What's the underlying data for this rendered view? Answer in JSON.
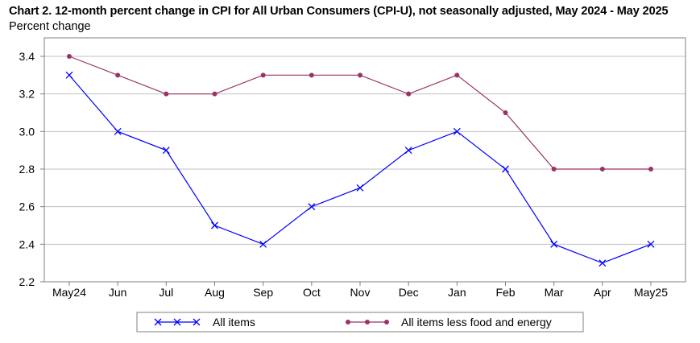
{
  "chart_data": {
    "type": "line",
    "title": "Chart 2. 12-month percent change in CPI for All Urban Consumers (CPI-U), not seasonally adjusted, May 2024 - May 2025",
    "ylabel": "Percent change",
    "xlabel": "",
    "categories": [
      "May24",
      "Jun",
      "Jul",
      "Aug",
      "Sep",
      "Oct",
      "Nov",
      "Dec",
      "Jan",
      "Feb",
      "Mar",
      "Apr",
      "May25"
    ],
    "ylim": [
      2.2,
      3.4
    ],
    "yticks": [
      "2.2",
      "2.4",
      "2.6",
      "2.8",
      "3.0",
      "3.2",
      "3.4"
    ],
    "grid": true,
    "legend_position": "bottom",
    "series": [
      {
        "name": "All items",
        "color": "#0000ff",
        "marker": "x",
        "values": [
          3.3,
          3.0,
          2.9,
          2.5,
          2.4,
          2.6,
          2.7,
          2.9,
          3.0,
          2.8,
          2.4,
          2.3,
          2.4
        ]
      },
      {
        "name": "All items less food and energy",
        "color": "#993366",
        "marker": "circle",
        "values": [
          3.4,
          3.3,
          3.2,
          3.2,
          3.3,
          3.3,
          3.3,
          3.2,
          3.3,
          3.1,
          2.8,
          2.8,
          2.8
        ]
      }
    ]
  }
}
